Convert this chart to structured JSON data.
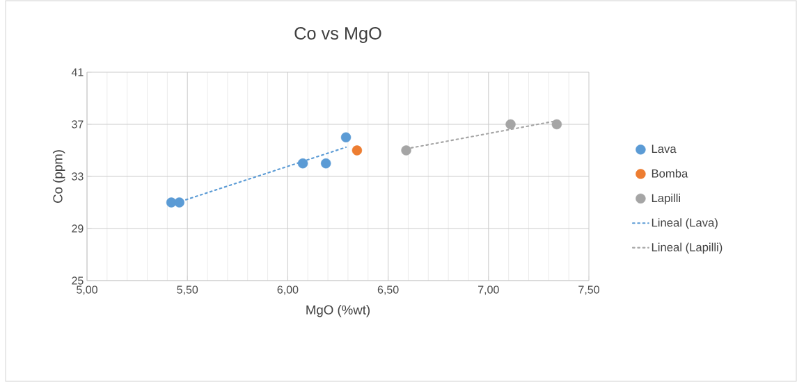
{
  "chart_data": {
    "type": "scatter",
    "title": "Co vs MgO",
    "xlabel": "MgO (%wt)",
    "ylabel": "Co (ppm)",
    "xlim": [
      5.0,
      7.5
    ],
    "ylim": [
      25,
      41
    ],
    "xticks": [
      {
        "value": 5.0,
        "label": "5,00"
      },
      {
        "value": 5.5,
        "label": "5,50"
      },
      {
        "value": 6.0,
        "label": "6,00"
      },
      {
        "value": 6.5,
        "label": "6,50"
      },
      {
        "value": 7.0,
        "label": "7,00"
      },
      {
        "value": 7.5,
        "label": "7,50"
      }
    ],
    "yticks": [
      25,
      29,
      33,
      37,
      41
    ],
    "grid": true,
    "legend": "right",
    "series": [
      {
        "name": "Lava",
        "color": "#5b9bd5",
        "marker": "circle",
        "x": [
          5.42,
          5.46,
          6.075,
          6.19,
          6.29
        ],
        "values": [
          31,
          31,
          34,
          34,
          36
        ]
      },
      {
        "name": "Bomba",
        "color": "#ed7d31",
        "marker": "circle",
        "x": [
          6.345
        ],
        "values": [
          35
        ]
      },
      {
        "name": "Lapilli",
        "color": "#a5a5a5",
        "marker": "circle",
        "x": [
          6.59,
          7.11,
          7.34
        ],
        "values": [
          35,
          37,
          37
        ]
      },
      {
        "name": "Lineal (Lava)",
        "type": "line",
        "color": "#5b9bd5",
        "marker": "none",
        "line_style": "dotted",
        "x": [
          5.42,
          6.29
        ],
        "values": [
          30.84,
          35.24
        ]
      },
      {
        "name": "Lineal (Lapilli)",
        "type": "line",
        "color": "#a5a5a5",
        "marker": "none",
        "line_style": "dotted",
        "x": [
          6.59,
          7.34
        ],
        "values": [
          35.12,
          37.27
        ]
      }
    ]
  }
}
